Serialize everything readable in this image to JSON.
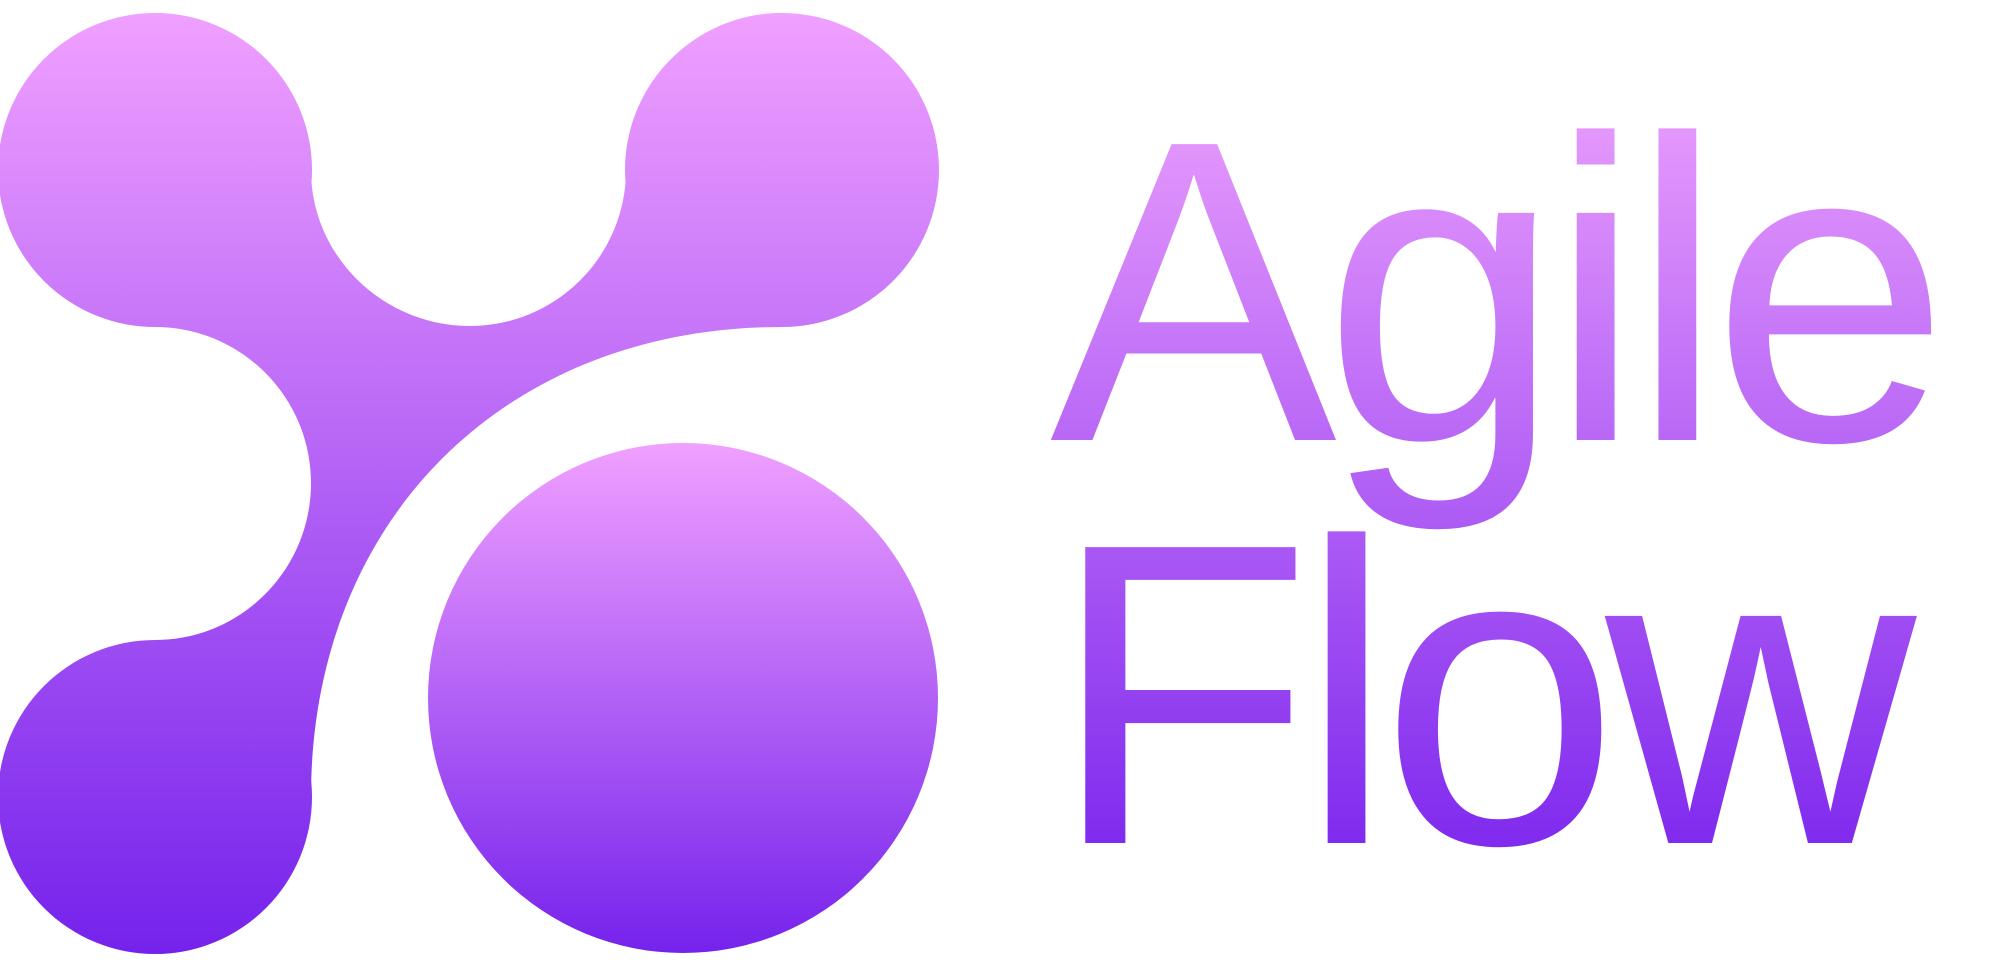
{
  "logo": {
    "word_top": "Agile",
    "word_bottom": "Flow",
    "gradient_top_color": "#F0A0FF",
    "gradient_bottom_color": "#7522EC"
  }
}
